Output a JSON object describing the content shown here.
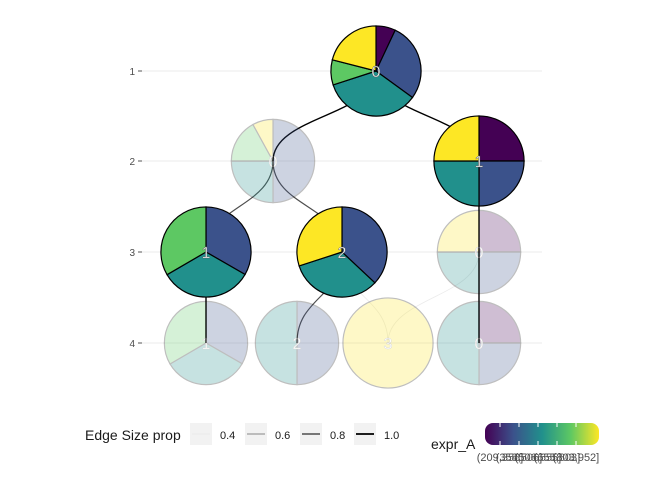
{
  "chart_data": {
    "type": "pie",
    "kind": "clustering-tree",
    "title": "",
    "xlabel": "",
    "ylabel": "",
    "grid": "horizontal",
    "y_ticks": [
      "1",
      "2",
      "3",
      "4"
    ],
    "legend_position": "bottom",
    "palette": {
      "c1": "#440154",
      "c2": "#3B528B",
      "c3": "#21908C",
      "c4": "#5DC863",
      "c5": "#FDE725"
    },
    "nodes": [
      {
        "id": "r1c0",
        "level": 1,
        "label": "0",
        "size": 1.0,
        "slices": [
          {
            "value": 7,
            "color": "#440154"
          },
          {
            "value": 28,
            "color": "#3B528B"
          },
          {
            "value": 35,
            "color": "#21908C"
          },
          {
            "value": 9,
            "color": "#5DC863"
          },
          {
            "value": 21,
            "color": "#FDE725"
          }
        ]
      },
      {
        "id": "r2c0",
        "level": 2,
        "label": "0",
        "size": 0.8,
        "faded": true,
        "slices": [
          {
            "value": 50,
            "color": "#3B528B"
          },
          {
            "value": 25,
            "color": "#21908C"
          },
          {
            "value": 17,
            "color": "#5DC863"
          },
          {
            "value": 8,
            "color": "#FDE725"
          }
        ]
      },
      {
        "id": "r2c1",
        "level": 2,
        "label": "1",
        "size": 1.0,
        "slices": [
          {
            "value": 25,
            "color": "#440154"
          },
          {
            "value": 25,
            "color": "#3B528B"
          },
          {
            "value": 25,
            "color": "#21908C"
          },
          {
            "value": 25,
            "color": "#FDE725"
          }
        ]
      },
      {
        "id": "r3c1",
        "level": 3,
        "label": "1",
        "size": 1.0,
        "slices": [
          {
            "value": 33.3,
            "color": "#3B528B"
          },
          {
            "value": 33.3,
            "color": "#21908C"
          },
          {
            "value": 33.4,
            "color": "#5DC863"
          }
        ]
      },
      {
        "id": "r3c2",
        "level": 3,
        "label": "2",
        "size": 1.0,
        "slices": [
          {
            "value": 37,
            "color": "#3B528B"
          },
          {
            "value": 33,
            "color": "#21908C"
          },
          {
            "value": 30,
            "color": "#FDE725"
          }
        ]
      },
      {
        "id": "r3c0",
        "level": 3,
        "label": "0",
        "size": 0.8,
        "faded": true,
        "slices": [
          {
            "value": 25,
            "color": "#440154"
          },
          {
            "value": 25,
            "color": "#3B528B"
          },
          {
            "value": 25,
            "color": "#21908C"
          },
          {
            "value": 25,
            "color": "#FDE725"
          }
        ]
      },
      {
        "id": "r4c1",
        "level": 4,
        "label": "1",
        "size": 0.8,
        "faded": true,
        "slices": [
          {
            "value": 33.3,
            "color": "#3B528B"
          },
          {
            "value": 33.3,
            "color": "#21908C"
          },
          {
            "value": 33.4,
            "color": "#5DC863"
          }
        ]
      },
      {
        "id": "r4c2",
        "level": 4,
        "label": "2",
        "size": 0.8,
        "faded": true,
        "slices": [
          {
            "value": 50,
            "color": "#3B528B"
          },
          {
            "value": 50,
            "color": "#21908C"
          }
        ]
      },
      {
        "id": "r4c3",
        "level": 4,
        "label": "3",
        "size": 1.0,
        "faded": true,
        "slices": [
          {
            "value": 100,
            "color": "#FDE725"
          }
        ]
      },
      {
        "id": "r4c0",
        "level": 4,
        "label": "0",
        "size": 0.8,
        "faded": true,
        "slices": [
          {
            "value": 25,
            "color": "#440154"
          },
          {
            "value": 25,
            "color": "#3B528B"
          },
          {
            "value": 50,
            "color": "#21908C"
          }
        ]
      }
    ],
    "edges": [
      {
        "from": "r1c0",
        "to": "r2c0",
        "prop": 1.0
      },
      {
        "from": "r1c0",
        "to": "r2c1",
        "prop": 1.0
      },
      {
        "from": "r2c0",
        "to": "r3c1",
        "prop": 0.8
      },
      {
        "from": "r2c0",
        "to": "r3c2",
        "prop": 0.8
      },
      {
        "from": "r2c1",
        "to": "r3c0",
        "prop": 1.0
      },
      {
        "from": "r3c1",
        "to": "r4c1",
        "prop": 1.0
      },
      {
        "from": "r3c2",
        "to": "r4c2",
        "prop": 0.8
      },
      {
        "from": "r3c2",
        "to": "r4c3",
        "prop": 0.4
      },
      {
        "from": "r3c0",
        "to": "r4c3",
        "prop": 0.4
      },
      {
        "from": "r3c0",
        "to": "r4c0",
        "prop": 1.0
      }
    ],
    "legend": {
      "edge_title": "Edge Size prop",
      "edge_items": [
        {
          "label": "0.4",
          "value": 0.4
        },
        {
          "label": "0.6",
          "value": 0.6
        },
        {
          "label": "0.8",
          "value": 0.8
        },
        {
          "label": "1.0",
          "value": 1.0
        }
      ],
      "color_title": "expr_A",
      "color_labels": [
        "(209,358]",
        "(358,506]",
        "(506,655]",
        "(655,803]",
        "(803,952]"
      ]
    }
  }
}
